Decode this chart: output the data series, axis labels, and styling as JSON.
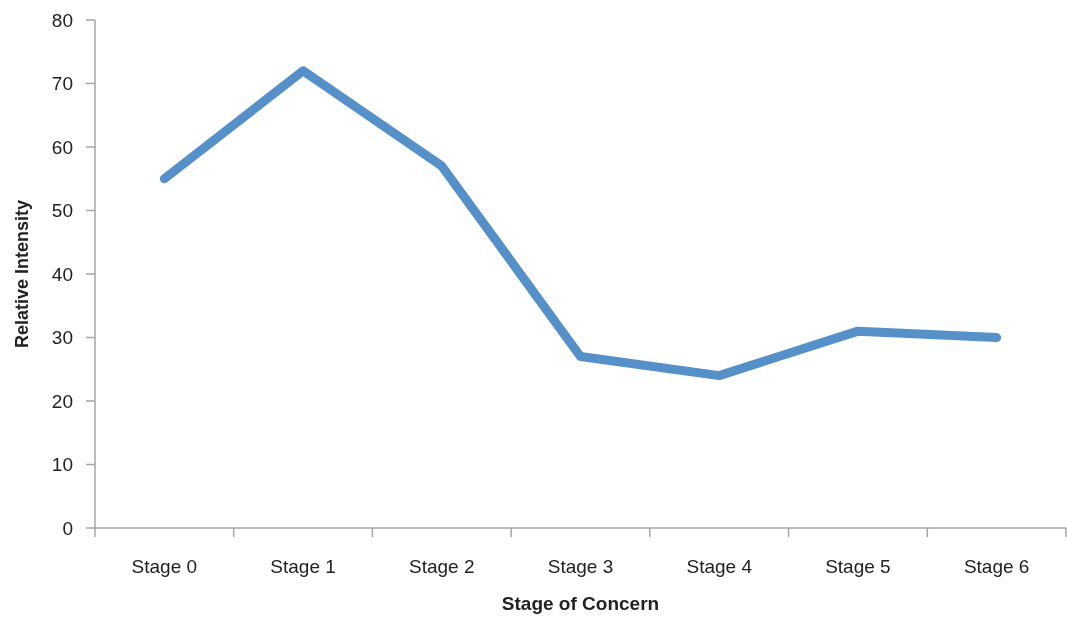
{
  "chart_data": {
    "type": "line",
    "xlabel": "Stage of Concern",
    "ylabel": "Relative Intensity",
    "categories": [
      "Stage 0",
      "Stage 1",
      "Stage 2",
      "Stage 3",
      "Stage 4",
      "Stage 5",
      "Stage 6"
    ],
    "values": [
      55,
      72,
      57,
      27,
      24,
      31,
      30
    ],
    "color": "#5690c8",
    "ylim": [
      0,
      80
    ],
    "yticks": [
      0,
      10,
      20,
      30,
      40,
      50,
      60,
      70,
      80
    ]
  }
}
